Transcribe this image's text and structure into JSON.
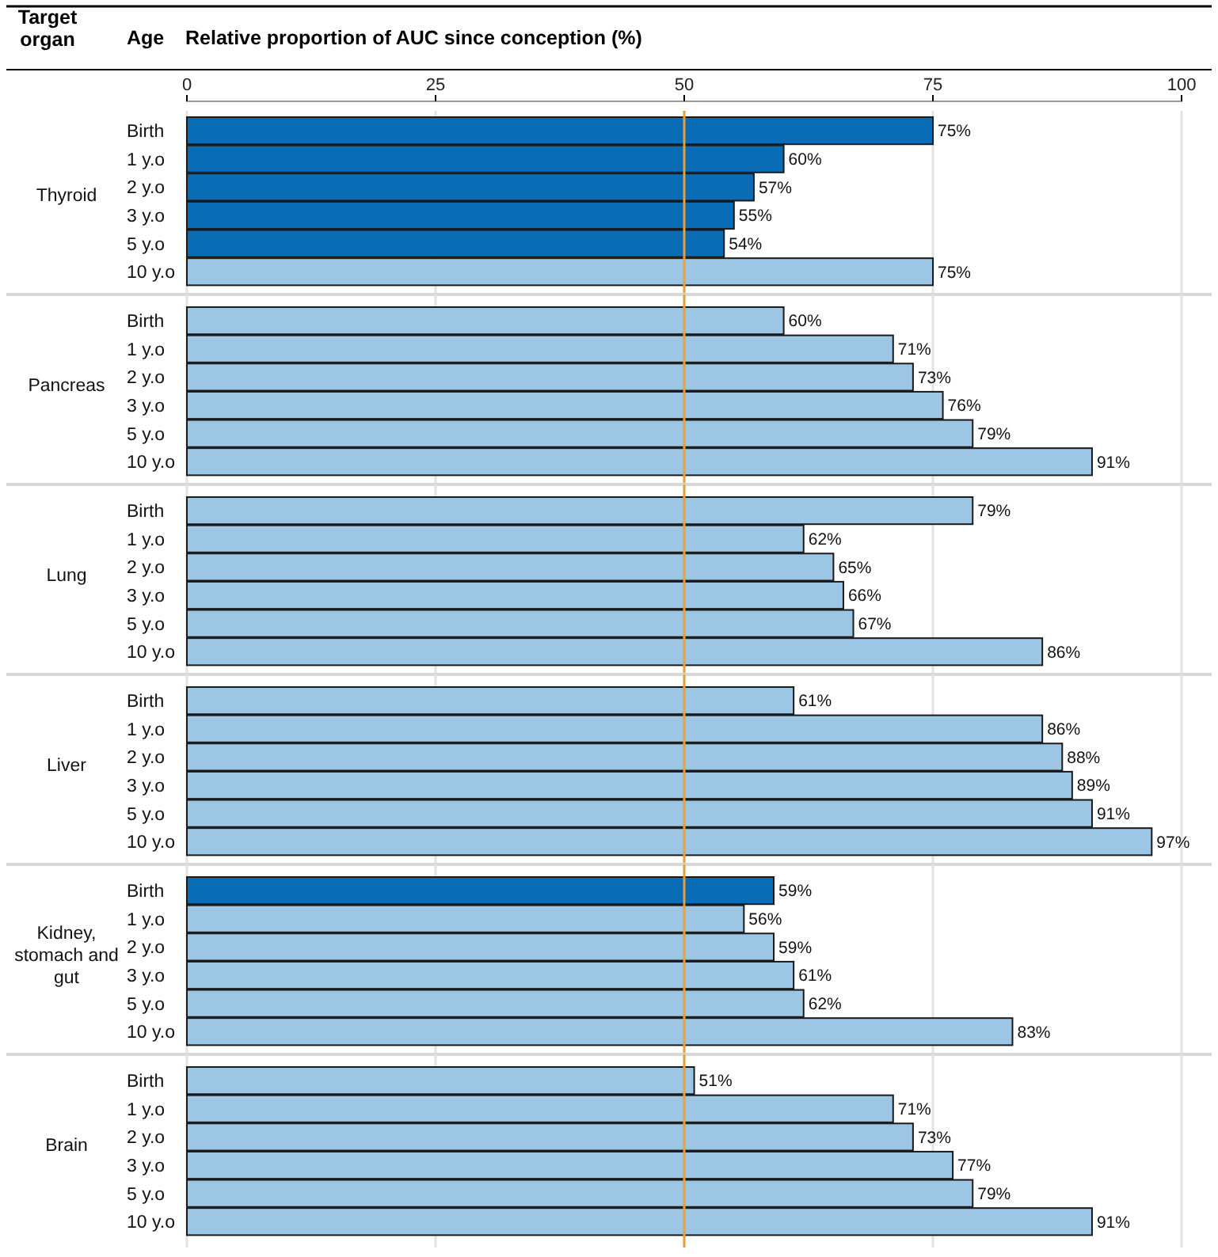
{
  "chart_data": [
    {
      "type": "bar",
      "orientation": "horizontal",
      "title": "Thyroid",
      "xlabel": "Relative proportion of AUC since conception (%)",
      "annotations": [
        "Target organ",
        "Age"
      ],
      "categories": [
        "Birth",
        "1 y.o",
        "2 y.o",
        "3 y.o",
        "5 y.o",
        "10 y.o"
      ],
      "values": [
        75,
        60,
        57,
        55,
        54,
        75
      ],
      "value_labels": [
        "75%",
        "60%",
        "57%",
        "55%",
        "54%",
        "75%"
      ],
      "colors": [
        "#0a6cb4",
        "#0a6cb4",
        "#0a6cb4",
        "#0a6cb4",
        "#0a6cb4",
        "#9cc6e4"
      ],
      "xlim": [
        0,
        100
      ],
      "xticks": [
        0,
        25,
        50,
        75,
        100
      ],
      "grid": "x",
      "ref_lines": [
        {
          "axis": "x",
          "value": 50,
          "color": "#e8a13a"
        }
      ]
    },
    {
      "type": "bar",
      "orientation": "horizontal",
      "title": "Pancreas",
      "categories": [
        "Birth",
        "1 y.o",
        "2 y.o",
        "3 y.o",
        "5 y.o",
        "10 y.o"
      ],
      "values": [
        60,
        71,
        73,
        76,
        79,
        91
      ],
      "value_labels": [
        "60%",
        "71%",
        "73%",
        "76%",
        "79%",
        "91%"
      ],
      "colors": [
        "#9cc6e4",
        "#9cc6e4",
        "#9cc6e4",
        "#9cc6e4",
        "#9cc6e4",
        "#9cc6e4"
      ],
      "xlim": [
        0,
        100
      ],
      "xticks": [
        0,
        25,
        50,
        75,
        100
      ],
      "tick_labels": "y",
      "grid": "x",
      "ref_lines": [
        {
          "axis": "x",
          "value": 50,
          "color": "#e8a13a"
        }
      ]
    },
    {
      "type": "bar",
      "orientation": "horizontal",
      "title": "Lung",
      "categories": [
        "Birth",
        "1 y.o",
        "2 y.o",
        "3 y.o",
        "5 y.o",
        "10 y.o"
      ],
      "values": [
        79,
        62,
        65,
        66,
        67,
        86
      ],
      "value_labels": [
        "79%",
        "62%",
        "65%",
        "66%",
        "67%",
        "86%"
      ],
      "colors": [
        "#9cc6e4",
        "#9cc6e4",
        "#9cc6e4",
        "#9cc6e4",
        "#9cc6e4",
        "#9cc6e4"
      ],
      "xlim": [
        0,
        100
      ],
      "xticks": [
        0,
        25,
        50,
        75,
        100
      ],
      "tick_labels": "y",
      "grid": "x",
      "ref_lines": [
        {
          "axis": "x",
          "value": 50,
          "color": "#e8a13a"
        }
      ]
    },
    {
      "type": "bar",
      "orientation": "horizontal",
      "title": "Liver",
      "categories": [
        "Birth",
        "1 y.o",
        "2 y.o",
        "3 y.o",
        "5 y.o",
        "10 y.o"
      ],
      "values": [
        61,
        86,
        88,
        89,
        91,
        97
      ],
      "value_labels": [
        "61%",
        "86%",
        "88%",
        "89%",
        "91%",
        "97%"
      ],
      "colors": [
        "#9cc6e4",
        "#9cc6e4",
        "#9cc6e4",
        "#9cc6e4",
        "#9cc6e4",
        "#9cc6e4"
      ],
      "xlim": [
        0,
        100
      ],
      "xticks": [
        0,
        25,
        50,
        75,
        100
      ],
      "tick_labels": "y",
      "grid": "x",
      "ref_lines": [
        {
          "axis": "x",
          "value": 50,
          "color": "#e8a13a"
        }
      ]
    },
    {
      "type": "bar",
      "orientation": "horizontal",
      "title": "Kidney, stomach and gut",
      "categories": [
        "Birth",
        "1 y.o",
        "2 y.o",
        "3 y.o",
        "5 y.o",
        "10 y.o"
      ],
      "values": [
        59,
        56,
        59,
        61,
        62,
        83
      ],
      "value_labels": [
        "59%",
        "56%",
        "59%",
        "61%",
        "62%",
        "83%"
      ],
      "colors": [
        "#0a6cb4",
        "#9cc6e4",
        "#9cc6e4",
        "#9cc6e4",
        "#9cc6e4",
        "#9cc6e4"
      ],
      "xlim": [
        0,
        100
      ],
      "xticks": [
        0,
        25,
        50,
        75,
        100
      ],
      "tick_labels": "y",
      "grid": "x",
      "ref_lines": [
        {
          "axis": "x",
          "value": 50,
          "color": "#e8a13a"
        }
      ]
    },
    {
      "type": "bar",
      "orientation": "horizontal",
      "title": "Brain",
      "categories": [
        "Birth",
        "1 y.o",
        "2 y.o",
        "3 y.o",
        "5 y.o",
        "10 y.o"
      ],
      "values": [
        51,
        71,
        73,
        77,
        79,
        91
      ],
      "value_labels": [
        "51%",
        "71%",
        "73%",
        "77%",
        "79%",
        "91%"
      ],
      "colors": [
        "#9cc6e4",
        "#9cc6e4",
        "#9cc6e4",
        "#9cc6e4",
        "#9cc6e4",
        "#9cc6e4"
      ],
      "xlim": [
        0,
        100
      ],
      "xticks": [
        0,
        25,
        50,
        75,
        100
      ],
      "tick_labels": "y",
      "grid": "x",
      "ref_lines": [
        {
          "axis": "x",
          "value": 50,
          "color": "#e8a13a"
        }
      ]
    }
  ]
}
